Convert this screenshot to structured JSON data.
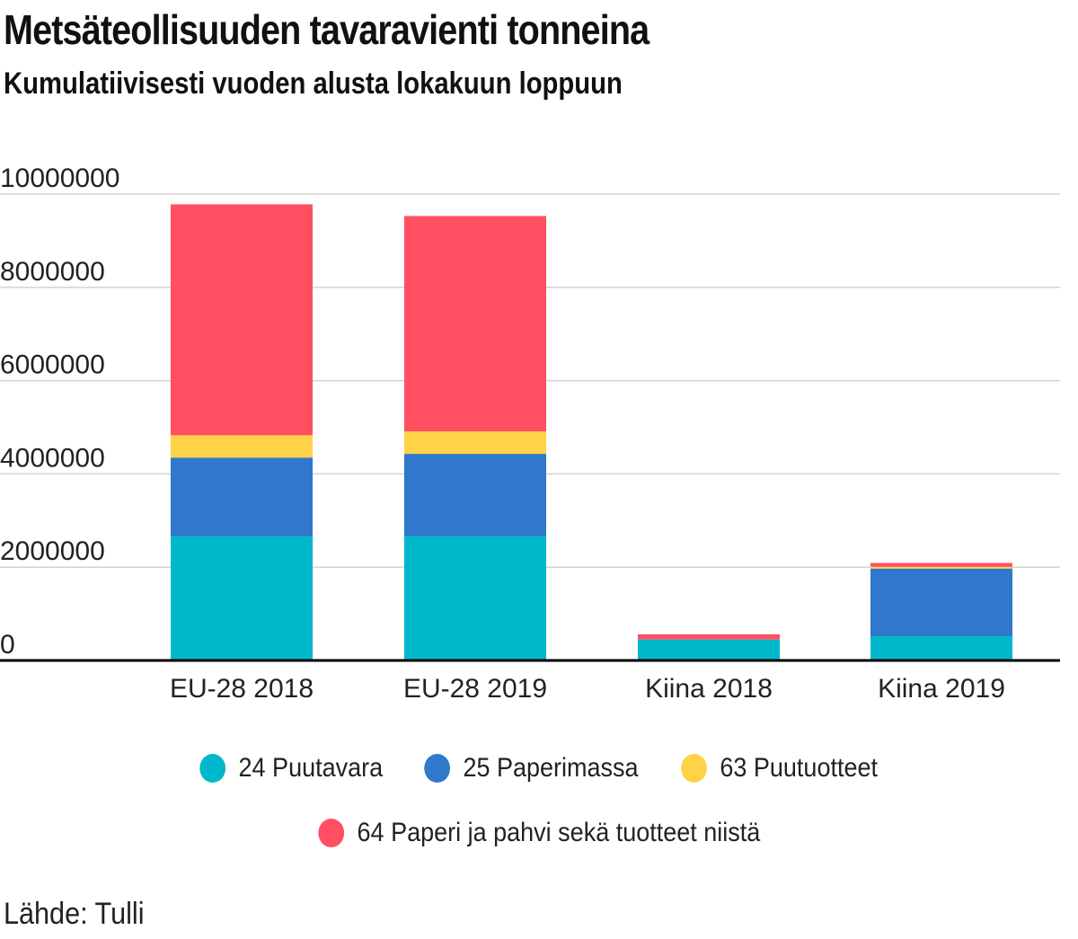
{
  "chart_data": {
    "type": "bar",
    "stacked": true,
    "title": "Metsäteollisuuden tavaravienti tonneina",
    "subtitle": "Kumulatiivisesti vuoden alusta lokakuun loppuun",
    "categories": [
      "EU-28 2018",
      "EU-28 2019",
      "Kiina 2018",
      "Kiina 2019"
    ],
    "series": [
      {
        "name": "24 Puutavara",
        "color": "#00b8cc",
        "values": [
          2660000,
          2660000,
          450000,
          520000
        ]
      },
      {
        "name": "25 Paperimassa",
        "color": "#2f78cc",
        "values": [
          1690000,
          1770000,
          0,
          1450000
        ]
      },
      {
        "name": "63 Puutuotteet",
        "color": "#ffd247",
        "values": [
          480000,
          480000,
          0,
          40000
        ]
      },
      {
        "name": "64 Paperi ja pahvi sekä tuotteet niistä",
        "color": "#ff4f61",
        "values": [
          4950000,
          4620000,
          110000,
          80000
        ]
      }
    ],
    "yticks": [
      "0",
      "2000000",
      "4000000",
      "6000000",
      "8000000",
      "10000000"
    ],
    "ylim": [
      0,
      10000000
    ],
    "grid": true,
    "legend": "bottom",
    "source": "Lähde: Tulli"
  }
}
